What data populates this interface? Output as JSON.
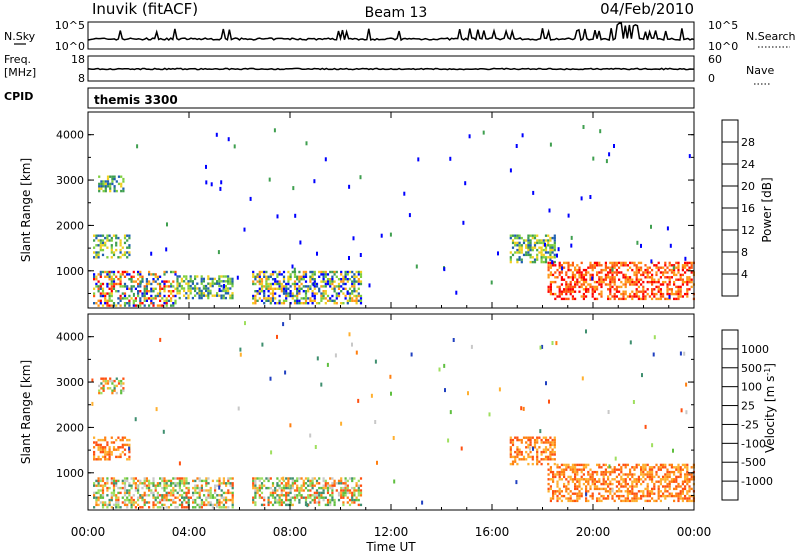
{
  "header": {
    "station": "Inuvik (fitACF)",
    "beam": "Beam 13",
    "date": "04/Feb/2010"
  },
  "top_panels": {
    "nsky_label": "N.Sky",
    "nsky_ticks": [
      "10^5",
      "10^0"
    ],
    "nsearch_label": "N.Search",
    "nsearch_ticks": [
      "10^5",
      "10^0"
    ],
    "freq_label": "Freq.",
    "freq_unit": "[MHz]",
    "freq_ticks": [
      "18",
      "8"
    ],
    "nave_label": "Nave",
    "nave_ticks": [
      "60",
      "0"
    ],
    "cpid_label": "CPID",
    "cpid_value": "themis 3300"
  },
  "chart_data": [
    {
      "type": "heatmap",
      "title": "",
      "ylabel": "Slant Range [km]",
      "xlabel": "",
      "ylim": [
        180,
        4500
      ],
      "xlim": [
        0,
        24
      ],
      "yticks": [
        "1000",
        "2000",
        "3000",
        "4000"
      ],
      "colorbar_label": "Power [dB]",
      "colorbar_ticks": [
        "4",
        "8",
        "12",
        "16",
        "20",
        "24",
        "28"
      ],
      "colorbar_colors": [
        "#0000ff",
        "#1f5fb0",
        "#3f9f4f",
        "#7fcf3f",
        "#f0d020",
        "#ff9a1a",
        "#ff5a10",
        "#ff0000"
      ],
      "regions": [
        {
          "x": [
            0.2,
            3.5
          ],
          "y": [
            250,
            1000
          ],
          "level": "mixed-high"
        },
        {
          "x": [
            3.5,
            5.7
          ],
          "y": [
            400,
            900
          ],
          "level": "mid"
        },
        {
          "x": [
            0.2,
            1.6
          ],
          "y": [
            1300,
            1800
          ],
          "level": "mid"
        },
        {
          "x": [
            0.4,
            1.4
          ],
          "y": [
            2750,
            3100
          ],
          "level": "mid"
        },
        {
          "x": [
            6.5,
            10.8
          ],
          "y": [
            300,
            1000
          ],
          "level": "mixed"
        },
        {
          "x": [
            16.7,
            18.5
          ],
          "y": [
            1200,
            1800
          ],
          "level": "mid"
        },
        {
          "x": [
            18.2,
            24
          ],
          "y": [
            400,
            1200
          ],
          "level": "high"
        }
      ]
    },
    {
      "type": "heatmap",
      "title": "",
      "ylabel": "Slant Range [km]",
      "xlabel": "Time UT",
      "ylim": [
        180,
        4500
      ],
      "xlim": [
        0,
        24
      ],
      "xticks": [
        "00:00",
        "04:00",
        "08:00",
        "12:00",
        "16:00",
        "20:00",
        "00:00"
      ],
      "yticks": [
        "1000",
        "2000",
        "3000",
        "4000"
      ],
      "colorbar_label": "Velocity [m s^-1]",
      "colorbar_ticks": [
        "1000",
        "500",
        "100",
        "25",
        "-25",
        "-100",
        "-500",
        "-1000"
      ],
      "colorbar_colors": [
        "#2040c0",
        "#3f8f6f",
        "#5fbf3f",
        "#9fdf5f",
        "#c8c8c8",
        "#ffb030",
        "#ff7f10",
        "#ff5010",
        "#ff0000"
      ],
      "regions": [
        {
          "x": [
            0.2,
            5.7
          ],
          "y": [
            250,
            900
          ],
          "level": "mixed"
        },
        {
          "x": [
            0.2,
            1.6
          ],
          "y": [
            1300,
            1800
          ],
          "level": "negative"
        },
        {
          "x": [
            0.4,
            1.4
          ],
          "y": [
            2750,
            3100
          ],
          "level": "mixed"
        },
        {
          "x": [
            6.5,
            10.8
          ],
          "y": [
            300,
            900
          ],
          "level": "mixed"
        },
        {
          "x": [
            16.7,
            18.5
          ],
          "y": [
            1200,
            1800
          ],
          "level": "negative"
        },
        {
          "x": [
            18.2,
            24
          ],
          "y": [
            400,
            1200
          ],
          "level": "negative"
        }
      ]
    }
  ]
}
